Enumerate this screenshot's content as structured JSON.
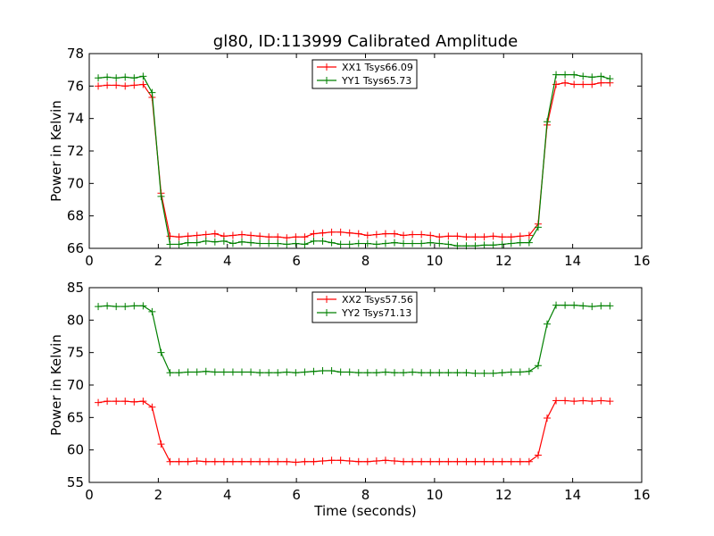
{
  "chart_data": [
    {
      "type": "line",
      "title": "gl80, ID:113999 Calibrated Amplitude",
      "xlabel": "",
      "ylabel": "Power in Kelvin",
      "xlim": [
        0,
        16
      ],
      "ylim": [
        66,
        78
      ],
      "xticks": [
        "0",
        "2",
        "4",
        "6",
        "8",
        "10",
        "12",
        "14",
        "16"
      ],
      "yticks": [
        "66",
        "68",
        "70",
        "72",
        "74",
        "76",
        "78"
      ],
      "grid": false,
      "legend": "top-center",
      "x": [
        0.26,
        0.52,
        0.78,
        1.04,
        1.3,
        1.56,
        1.82,
        2.08,
        2.34,
        2.6,
        2.86,
        3.12,
        3.38,
        3.64,
        3.9,
        4.16,
        4.42,
        4.68,
        4.94,
        5.2,
        5.46,
        5.72,
        5.98,
        6.24,
        6.5,
        6.76,
        7.02,
        7.28,
        7.54,
        7.8,
        8.06,
        8.32,
        8.58,
        8.84,
        9.1,
        9.36,
        9.62,
        9.88,
        10.14,
        10.4,
        10.66,
        10.92,
        11.18,
        11.44,
        11.7,
        11.96,
        12.22,
        12.48,
        12.74,
        13.0,
        13.26,
        13.52,
        13.78,
        14.04,
        14.3,
        14.56,
        14.82,
        15.08
      ],
      "series": [
        {
          "name": "XX1 Tsys66.09",
          "color": "#ff0000",
          "values": [
            76.0,
            76.05,
            76.05,
            76.0,
            76.05,
            76.1,
            75.3,
            69.4,
            66.75,
            66.7,
            66.75,
            66.8,
            66.85,
            66.9,
            66.75,
            66.8,
            66.85,
            66.8,
            66.75,
            66.7,
            66.7,
            66.65,
            66.7,
            66.7,
            66.9,
            66.95,
            67.0,
            67.0,
            66.95,
            66.9,
            66.8,
            66.85,
            66.9,
            66.9,
            66.8,
            66.85,
            66.85,
            66.8,
            66.7,
            66.75,
            66.75,
            66.7,
            66.7,
            66.7,
            66.75,
            66.7,
            66.7,
            66.75,
            66.8,
            67.5,
            73.6,
            76.1,
            76.2,
            76.1,
            76.1,
            76.1,
            76.2,
            76.2
          ]
        },
        {
          "name": "YY1 Tsys65.73",
          "color": "#008000",
          "values": [
            76.5,
            76.55,
            76.5,
            76.55,
            76.5,
            76.6,
            75.6,
            69.2,
            66.25,
            66.25,
            66.35,
            66.35,
            66.45,
            66.4,
            66.45,
            66.3,
            66.4,
            66.35,
            66.3,
            66.3,
            66.3,
            66.25,
            66.3,
            66.25,
            66.45,
            66.45,
            66.35,
            66.25,
            66.25,
            66.3,
            66.3,
            66.25,
            66.3,
            66.35,
            66.3,
            66.3,
            66.3,
            66.35,
            66.3,
            66.25,
            66.15,
            66.15,
            66.15,
            66.2,
            66.2,
            66.25,
            66.3,
            66.35,
            66.35,
            67.3,
            73.8,
            76.7,
            76.7,
            76.7,
            76.6,
            76.55,
            76.6,
            76.45
          ]
        }
      ]
    },
    {
      "type": "line",
      "title": "",
      "xlabel": "Time (seconds)",
      "ylabel": "Power in Kelvin",
      "xlim": [
        0,
        16
      ],
      "ylim": [
        55,
        85
      ],
      "xticks": [
        "0",
        "2",
        "4",
        "6",
        "8",
        "10",
        "12",
        "14",
        "16"
      ],
      "yticks": [
        "55",
        "60",
        "65",
        "70",
        "75",
        "80",
        "85"
      ],
      "grid": false,
      "legend": "top-center",
      "x": [
        0.26,
        0.52,
        0.78,
        1.04,
        1.3,
        1.56,
        1.82,
        2.08,
        2.34,
        2.6,
        2.86,
        3.12,
        3.38,
        3.64,
        3.9,
        4.16,
        4.42,
        4.68,
        4.94,
        5.2,
        5.46,
        5.72,
        5.98,
        6.24,
        6.5,
        6.76,
        7.02,
        7.28,
        7.54,
        7.8,
        8.06,
        8.32,
        8.58,
        8.84,
        9.1,
        9.36,
        9.62,
        9.88,
        10.14,
        10.4,
        10.66,
        10.92,
        11.18,
        11.44,
        11.7,
        11.96,
        12.22,
        12.48,
        12.74,
        13.0,
        13.26,
        13.52,
        13.78,
        14.04,
        14.3,
        14.56,
        14.82,
        15.08
      ],
      "series": [
        {
          "name": "XX2 Tsys57.56",
          "color": "#ff0000",
          "values": [
            67.3,
            67.5,
            67.5,
            67.5,
            67.4,
            67.5,
            66.6,
            60.9,
            58.2,
            58.2,
            58.2,
            58.3,
            58.2,
            58.2,
            58.2,
            58.2,
            58.2,
            58.2,
            58.2,
            58.2,
            58.2,
            58.2,
            58.1,
            58.2,
            58.2,
            58.3,
            58.4,
            58.4,
            58.3,
            58.2,
            58.2,
            58.3,
            58.4,
            58.3,
            58.2,
            58.2,
            58.2,
            58.2,
            58.2,
            58.2,
            58.2,
            58.2,
            58.2,
            58.2,
            58.2,
            58.2,
            58.2,
            58.2,
            58.2,
            59.2,
            64.9,
            67.6,
            67.6,
            67.5,
            67.6,
            67.5,
            67.6,
            67.5
          ]
        },
        {
          "name": "YY2 Tsys71.13",
          "color": "#008000",
          "values": [
            82.1,
            82.2,
            82.1,
            82.1,
            82.2,
            82.2,
            81.3,
            75.0,
            71.9,
            71.9,
            72.0,
            72.0,
            72.1,
            72.0,
            72.0,
            72.0,
            72.0,
            72.0,
            71.9,
            71.9,
            71.9,
            72.0,
            71.9,
            72.0,
            72.1,
            72.2,
            72.2,
            72.0,
            72.0,
            71.9,
            71.9,
            71.9,
            72.0,
            71.9,
            71.9,
            72.0,
            71.9,
            71.9,
            71.9,
            71.9,
            71.9,
            71.9,
            71.8,
            71.8,
            71.8,
            71.9,
            72.0,
            72.0,
            72.1,
            73.0,
            79.4,
            82.3,
            82.3,
            82.3,
            82.2,
            82.1,
            82.2,
            82.2
          ]
        }
      ]
    }
  ]
}
